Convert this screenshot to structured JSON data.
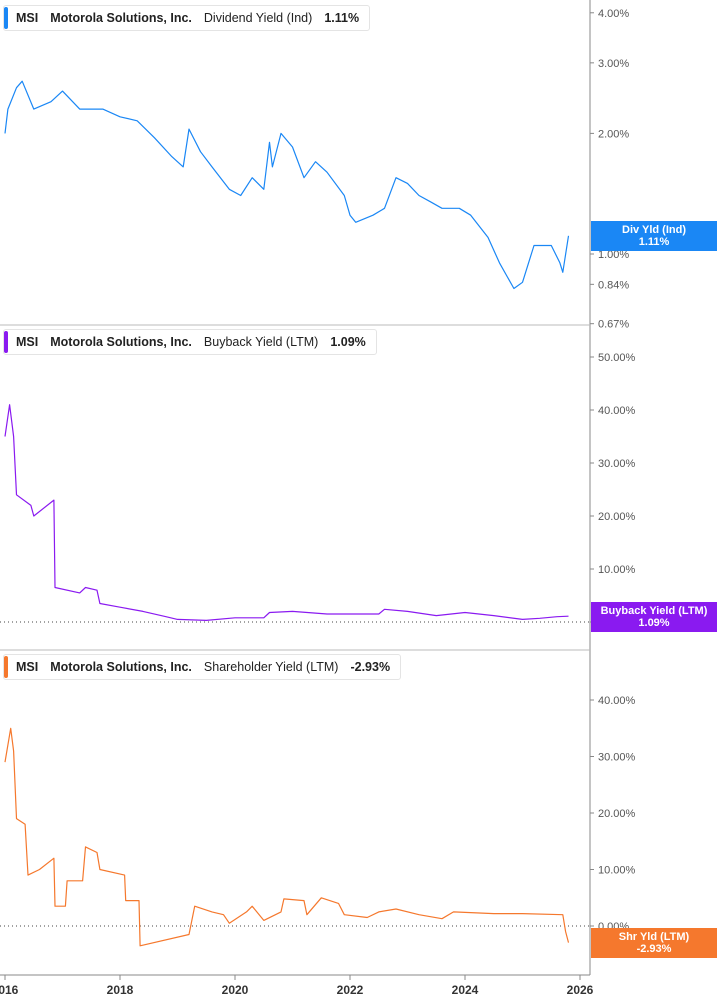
{
  "chart_data": [
    {
      "type": "line",
      "ticker": "MSI",
      "company": "Motorola Solutions, Inc.",
      "metric": "Dividend Yield (Ind)",
      "current": "1.11%",
      "tag_label": "Div Yld (Ind)",
      "color": "#1a87f5",
      "scale": "log",
      "ylim": [
        0.67,
        4.0
      ],
      "y_ticks": [
        "4.00%",
        "3.00%",
        "2.00%",
        "1.00%",
        "0.84%",
        "0.67%"
      ],
      "y_tick_values": [
        4,
        3,
        2,
        1,
        0.84,
        0.67
      ],
      "x": [
        2016.0,
        2016.05,
        2016.2,
        2016.3,
        2016.5,
        2016.8,
        2017.0,
        2017.3,
        2017.7,
        2018.0,
        2018.3,
        2018.6,
        2018.9,
        2019.1,
        2019.2,
        2019.4,
        2019.6,
        2019.9,
        2020.1,
        2020.3,
        2020.5,
        2020.6,
        2020.65,
        2020.8,
        2021.0,
        2021.2,
        2021.4,
        2021.6,
        2021.9,
        2022.0,
        2022.1,
        2022.4,
        2022.6,
        2022.8,
        2023.0,
        2023.2,
        2023.4,
        2023.6,
        2023.9,
        2024.1,
        2024.4,
        2024.6,
        2024.85,
        2025.0,
        2025.2,
        2025.5,
        2025.65,
        2025.7,
        2025.8
      ],
      "y": [
        2.0,
        2.3,
        2.6,
        2.7,
        2.3,
        2.4,
        2.55,
        2.3,
        2.3,
        2.2,
        2.15,
        1.95,
        1.75,
        1.65,
        2.05,
        1.8,
        1.65,
        1.45,
        1.4,
        1.55,
        1.45,
        1.9,
        1.65,
        2.0,
        1.85,
        1.55,
        1.7,
        1.6,
        1.4,
        1.25,
        1.2,
        1.25,
        1.3,
        1.55,
        1.5,
        1.4,
        1.35,
        1.3,
        1.3,
        1.25,
        1.1,
        0.95,
        0.82,
        0.85,
        1.05,
        1.05,
        0.95,
        0.9,
        1.11
      ]
    },
    {
      "type": "line",
      "ticker": "MSI",
      "company": "Motorola Solutions, Inc.",
      "metric": "Buyback Yield (LTM)",
      "current": "1.09%",
      "tag_label": "Buyback Yield (LTM)",
      "color": "#8a1af0",
      "scale": "linear",
      "ylim": [
        0,
        50
      ],
      "y_ticks": [
        "50.00%",
        "40.00%",
        "30.00%",
        "20.00%",
        "10.00%",
        "0.00%"
      ],
      "y_tick_values": [
        50,
        40,
        30,
        20,
        10,
        0
      ],
      "x": [
        2016.0,
        2016.08,
        2016.15,
        2016.2,
        2016.45,
        2016.5,
        2016.85,
        2016.87,
        2017.3,
        2017.4,
        2017.6,
        2017.65,
        2018.0,
        2018.4,
        2018.8,
        2019.0,
        2019.5,
        2020.0,
        2020.5,
        2020.6,
        2021.0,
        2021.6,
        2022.0,
        2022.5,
        2022.6,
        2023.0,
        2023.5,
        2024.0,
        2024.5,
        2025.0,
        2025.3,
        2025.6,
        2025.8
      ],
      "y": [
        35,
        41,
        35,
        24,
        22,
        20,
        23,
        6.5,
        5.5,
        6.5,
        6,
        3.5,
        2.8,
        2,
        1,
        0.5,
        0.3,
        0.8,
        0.8,
        1.8,
        2.0,
        1.5,
        1.5,
        1.5,
        2.4,
        2.0,
        1.2,
        1.8,
        1.2,
        0.5,
        0.7,
        1.0,
        1.09
      ]
    },
    {
      "type": "line",
      "ticker": "MSI",
      "company": "Motorola Solutions, Inc.",
      "metric": "Shareholder Yield (LTM)",
      "current": "-2.93%",
      "tag_label": "Shr Yld (LTM)",
      "color": "#f5782d",
      "scale": "linear",
      "ylim": [
        -5,
        45
      ],
      "y_ticks": [
        "40.00%",
        "30.00%",
        "20.00%",
        "10.00%",
        "0.00%"
      ],
      "y_tick_values": [
        40,
        30,
        20,
        10,
        0
      ],
      "x": [
        2016.0,
        2016.1,
        2016.15,
        2016.2,
        2016.35,
        2016.4,
        2016.6,
        2016.85,
        2016.87,
        2017.05,
        2017.08,
        2017.35,
        2017.4,
        2017.6,
        2017.65,
        2018.08,
        2018.1,
        2018.33,
        2018.35,
        2019.2,
        2019.3,
        2019.6,
        2019.8,
        2019.9,
        2020.2,
        2020.3,
        2020.5,
        2020.8,
        2020.85,
        2021.2,
        2021.25,
        2021.5,
        2021.8,
        2021.9,
        2022.3,
        2022.5,
        2022.8,
        2023.2,
        2023.6,
        2023.8,
        2024.5,
        2025.0,
        2025.7,
        2025.75,
        2025.8
      ],
      "y": [
        29,
        35,
        31,
        19,
        18,
        9,
        10,
        12,
        3.5,
        3.5,
        8,
        8,
        14,
        13,
        10,
        9,
        4.5,
        4.5,
        -3.5,
        -1.5,
        3.5,
        2.5,
        2.0,
        0.5,
        2.5,
        3.5,
        1.0,
        2.5,
        4.8,
        4.5,
        2.0,
        5,
        4,
        2,
        1.5,
        2.5,
        3,
        2,
        1.3,
        2.5,
        2.2,
        2.2,
        2.0,
        -1,
        -2.93
      ]
    }
  ],
  "x_axis": {
    "ticks": [
      "2016",
      "2018",
      "2020",
      "2022",
      "2024",
      "2026"
    ],
    "tick_values": [
      2016,
      2018,
      2020,
      2022,
      2024,
      2026
    ]
  }
}
